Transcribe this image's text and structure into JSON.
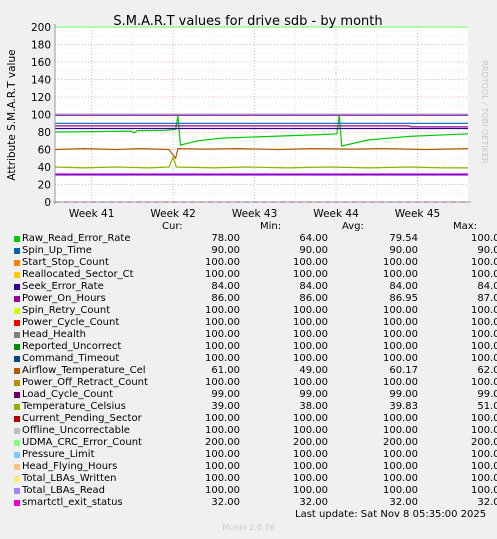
{
  "chart_data": {
    "type": "line",
    "title": "S.M.A.R.T values for drive sdb - by month",
    "ylabel": "Attribute S.M.A.R.T value",
    "ylim": [
      0,
      200
    ],
    "yticks": [
      0,
      20,
      40,
      60,
      80,
      100,
      120,
      140,
      160,
      180,
      200
    ],
    "xrange": [
      40.55,
      45.62
    ],
    "xticks": [
      {
        "label": "Week 41",
        "week": 41
      },
      {
        "label": "Week 42",
        "week": 42
      },
      {
        "label": "Week 43",
        "week": 43
      },
      {
        "label": "Week 44",
        "week": 44
      },
      {
        "label": "Week 45",
        "week": 45
      }
    ],
    "grid": true,
    "series": [
      {
        "name": "Raw_Read_Error_Rate",
        "color": "#00cc00",
        "cur": "78.00",
        "min": "64.00",
        "avg": "79.54",
        "max": "100.00",
        "points": [
          [
            40.55,
            80
          ],
          [
            41.05,
            80.5
          ],
          [
            41.48,
            81
          ],
          [
            41.52,
            79
          ],
          [
            41.56,
            81.5
          ],
          [
            41.9,
            82
          ],
          [
            42.03,
            83
          ],
          [
            42.06,
            99
          ],
          [
            42.09,
            65
          ],
          [
            42.3,
            70
          ],
          [
            42.6,
            73
          ],
          [
            43.2,
            75
          ],
          [
            43.8,
            77
          ],
          [
            44.01,
            78
          ],
          [
            44.04,
            100
          ],
          [
            44.07,
            64
          ],
          [
            44.4,
            71
          ],
          [
            44.9,
            75
          ],
          [
            45.62,
            78
          ]
        ]
      },
      {
        "name": "Spin_Up_Time",
        "color": "#0066b3",
        "cur": "90.00",
        "min": "90.00",
        "avg": "90.00",
        "max": "90.00",
        "points": [
          [
            40.55,
            90
          ],
          [
            45.62,
            90
          ]
        ]
      },
      {
        "name": "Start_Stop_Count",
        "color": "#ff8000",
        "cur": "100.00",
        "min": "100.00",
        "avg": "100.00",
        "max": "100.00",
        "points": [
          [
            40.55,
            100
          ],
          [
            45.62,
            100
          ]
        ]
      },
      {
        "name": "Reallocated_Sector_Ct",
        "color": "#ffcc00",
        "cur": "100.00",
        "min": "100.00",
        "avg": "100.00",
        "max": "100.00",
        "points": [
          [
            40.55,
            100
          ],
          [
            45.62,
            100
          ]
        ]
      },
      {
        "name": "Seek_Error_Rate",
        "color": "#330099",
        "cur": "84.00",
        "min": "84.00",
        "avg": "84.00",
        "max": "84.00",
        "points": [
          [
            40.55,
            84
          ],
          [
            45.62,
            84
          ]
        ]
      },
      {
        "name": "Power_On_Hours",
        "color": "#990099",
        "cur": "86.00",
        "min": "86.00",
        "avg": "86.95",
        "max": "87.00",
        "points": [
          [
            40.55,
            87
          ],
          [
            44.9,
            87
          ],
          [
            44.92,
            86
          ],
          [
            45.62,
            86
          ]
        ]
      },
      {
        "name": "Spin_Retry_Count",
        "color": "#ccff00",
        "cur": "100.00",
        "min": "100.00",
        "avg": "100.00",
        "max": "100.00",
        "points": [
          [
            40.55,
            100
          ],
          [
            45.62,
            100
          ]
        ]
      },
      {
        "name": "Power_Cycle_Count",
        "color": "#ff0000",
        "cur": "100.00",
        "min": "100.00",
        "avg": "100.00",
        "max": "100.00",
        "points": [
          [
            40.55,
            100
          ],
          [
            45.62,
            100
          ]
        ]
      },
      {
        "name": "Head_Health",
        "color": "#808080",
        "cur": "100.00",
        "min": "100.00",
        "avg": "100.00",
        "max": "100.00",
        "points": [
          [
            40.55,
            100
          ],
          [
            45.62,
            100
          ]
        ]
      },
      {
        "name": "Reported_Uncorrect",
        "color": "#008f00",
        "cur": "100.00",
        "min": "100.00",
        "avg": "100.00",
        "max": "100.00",
        "points": [
          [
            40.55,
            100
          ],
          [
            45.62,
            100
          ]
        ]
      },
      {
        "name": "Command_Timeout",
        "color": "#00487d",
        "cur": "100.00",
        "min": "100.00",
        "avg": "100.00",
        "max": "100.00",
        "points": [
          [
            40.55,
            100
          ],
          [
            45.62,
            100
          ]
        ]
      },
      {
        "name": "Airflow_Temperature_Cel",
        "color": "#b35a00",
        "cur": "61.00",
        "min": "49.00",
        "avg": "60.17",
        "max": "62.00",
        "points": [
          [
            40.55,
            60
          ],
          [
            40.9,
            61
          ],
          [
            41.3,
            60
          ],
          [
            41.6,
            61
          ],
          [
            41.95,
            60
          ],
          [
            42.03,
            50
          ],
          [
            42.06,
            61
          ],
          [
            42.4,
            60.5
          ],
          [
            42.8,
            61
          ],
          [
            43.3,
            60
          ],
          [
            43.7,
            61
          ],
          [
            44.2,
            60.5
          ],
          [
            44.6,
            61
          ],
          [
            45.1,
            60
          ],
          [
            45.62,
            61
          ]
        ]
      },
      {
        "name": "Power_Off_Retract_Count",
        "color": "#b38f00",
        "cur": "100.00",
        "min": "100.00",
        "avg": "100.00",
        "max": "100.00",
        "points": [
          [
            40.55,
            100
          ],
          [
            45.62,
            100
          ]
        ]
      },
      {
        "name": "Load_Cycle_Count",
        "color": "#6b006b",
        "cur": "99.00",
        "min": "99.00",
        "avg": "99.00",
        "max": "99.00",
        "points": [
          [
            40.55,
            99
          ],
          [
            45.62,
            99
          ]
        ]
      },
      {
        "name": "Temperature_Celsius",
        "color": "#8fb300",
        "cur": "39.00",
        "min": "38.00",
        "avg": "39.83",
        "max": "51.00",
        "points": [
          [
            40.55,
            40
          ],
          [
            40.9,
            39
          ],
          [
            41.3,
            40
          ],
          [
            41.7,
            39
          ],
          [
            41.95,
            40
          ],
          [
            42.0,
            51
          ],
          [
            42.04,
            40
          ],
          [
            42.5,
            39
          ],
          [
            42.9,
            40
          ],
          [
            43.4,
            39
          ],
          [
            43.9,
            40
          ],
          [
            44.4,
            39
          ],
          [
            44.9,
            40
          ],
          [
            45.3,
            39
          ],
          [
            45.62,
            39
          ]
        ]
      },
      {
        "name": "Current_Pending_Sector",
        "color": "#b30000",
        "cur": "100.00",
        "min": "100.00",
        "avg": "100.00",
        "max": "100.00",
        "points": [
          [
            40.55,
            100
          ],
          [
            45.62,
            100
          ]
        ]
      },
      {
        "name": "Offline_Uncorrectable",
        "color": "#bebebe",
        "cur": "100.00",
        "min": "100.00",
        "avg": "100.00",
        "max": "100.00",
        "points": [
          [
            40.55,
            100
          ],
          [
            45.62,
            100
          ]
        ]
      },
      {
        "name": "UDMA_CRC_Error_Count",
        "color": "#80ff80",
        "cur": "200.00",
        "min": "200.00",
        "avg": "200.00",
        "max": "200.00",
        "points": [
          [
            40.55,
            200
          ],
          [
            45.62,
            200
          ]
        ]
      },
      {
        "name": "Pressure_Limit",
        "color": "#80c9ff",
        "cur": "100.00",
        "min": "100.00",
        "avg": "100.00",
        "max": "100.00",
        "points": [
          [
            40.55,
            100
          ],
          [
            45.62,
            100
          ]
        ]
      },
      {
        "name": "Head_Flying_Hours",
        "color": "#ffc080",
        "cur": "100.00",
        "min": "100.00",
        "avg": "100.00",
        "max": "100.00",
        "points": [
          [
            40.55,
            100
          ],
          [
            45.62,
            100
          ]
        ]
      },
      {
        "name": "Total_LBAs_Written",
        "color": "#ffe680",
        "cur": "100.00",
        "min": "100.00",
        "avg": "100.00",
        "max": "100.00",
        "points": [
          [
            40.55,
            100
          ],
          [
            45.62,
            100
          ]
        ]
      },
      {
        "name": "Total_LBAs_Read",
        "color": "#aa80ff",
        "cur": "100.00",
        "min": "100.00",
        "avg": "100.00",
        "max": "100.00",
        "points": [
          [
            40.55,
            100
          ],
          [
            45.62,
            100
          ]
        ]
      },
      {
        "name": "smartctl_exit_status",
        "color": "#ee00cc",
        "cur": "32.00",
        "min": "32.00",
        "avg": "32.00",
        "max": "32.00",
        "points": [
          [
            40.55,
            32
          ],
          [
            45.62,
            32
          ]
        ]
      }
    ],
    "threshold_lines": [
      {
        "y": 0,
        "color": "#cc00cc",
        "dashed": true
      },
      {
        "y": 31,
        "color": "#6600cc",
        "dashed": false
      }
    ]
  },
  "legend": {
    "header_cur": "Cur:",
    "header_min": "Min:",
    "header_avg": "Avg:",
    "header_max": "Max:"
  },
  "footer": {
    "last_update": "Last update: Sat Nov  8 05:35:00 2025",
    "munin_version": "Munin 2.0.76"
  },
  "watermark": "RRDTOOL / TOBI OETIKER"
}
